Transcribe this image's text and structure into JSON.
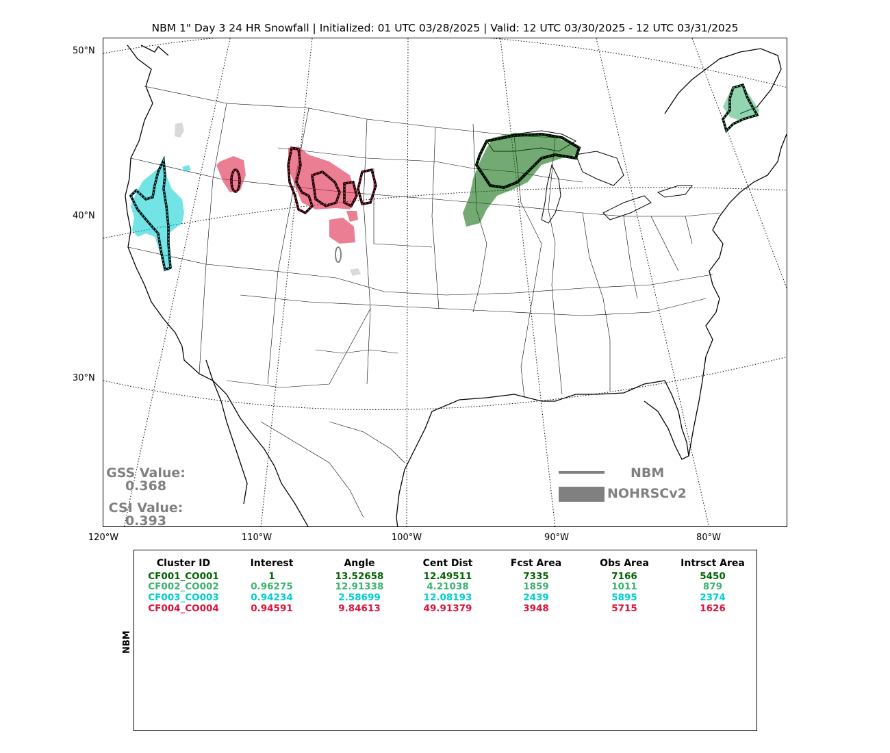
{
  "title": "NBM 1\" Day 3 24 HR Snowfall | Initialized: 01 UTC 03/28/2025 | Valid: 12 UTC 03/30/2025 - 12 UTC 03/31/2025",
  "lat_labels": [
    "50°N",
    "40°N",
    "30°N"
  ],
  "lon_labels": [
    "120°W",
    "110°W",
    "100°W",
    "90°W",
    "80°W"
  ],
  "stats": {
    "gss_label": "GSS Value:",
    "gss_value": "0.368",
    "csi_label": "CSI Value:",
    "csi_value": "0.393"
  },
  "legend": {
    "line_label": "NBM",
    "fill_label": "NOHRSCv2",
    "color": "#808080"
  },
  "side_label": "NBM",
  "table": {
    "headers": [
      "Cluster ID",
      "Interest",
      "Angle",
      "Cent Dist",
      "Fcst Area",
      "Obs Area",
      "Intrsct Area"
    ],
    "rows": [
      {
        "color": "#006400",
        "cells": [
          "CF001_CO001",
          "1",
          "13.52658",
          "12.49511",
          "7335",
          "7166",
          "5450"
        ]
      },
      {
        "color": "#3cb371",
        "cells": [
          "CF002_CO002",
          "0.96275",
          "12.91338",
          "4.21038",
          "1859",
          "1011",
          "879"
        ]
      },
      {
        "color": "#00ced1",
        "cells": [
          "CF003_CO003",
          "0.94234",
          "2.58699",
          "12.08193",
          "2439",
          "5895",
          "2374"
        ]
      },
      {
        "color": "#dc143c",
        "cells": [
          "CF004_CO004",
          "0.94591",
          "9.84613",
          "49.91379",
          "3948",
          "5715",
          "1626"
        ]
      }
    ]
  },
  "cluster_colors": {
    "cf001": "#006400",
    "cf002": "#3cb371",
    "cf003": "#00ced1",
    "cf004": "#dc143c",
    "unmatched": "#808080"
  }
}
